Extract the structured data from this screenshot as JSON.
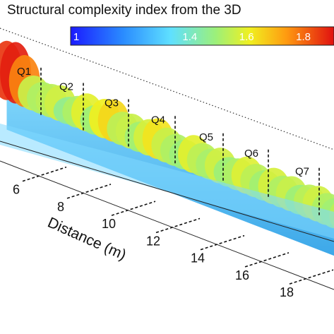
{
  "chart_data": {
    "type": "surface-3d",
    "title": "Structural complexity index from the 3D",
    "colorbar": {
      "ticks": [
        "1",
        "1.4",
        "1.6",
        "1.8"
      ],
      "tick_values": [
        1.0,
        1.4,
        1.6,
        1.8
      ],
      "range": [
        1.0,
        2.0
      ],
      "colormap": "jet",
      "placement": "top-right"
    },
    "axis": {
      "label": "Distance (m)",
      "ticks": [
        "6",
        "8",
        "10",
        "12",
        "14",
        "16",
        "18"
      ],
      "tick_values": [
        6,
        8,
        10,
        12,
        14,
        16,
        18
      ]
    },
    "quadrats": [
      "Q1",
      "Q2",
      "Q3",
      "Q4",
      "Q5",
      "Q6",
      "Q7"
    ],
    "surface_profile": {
      "distance_m": [
        3.0,
        3.4,
        3.8,
        4.2,
        4.6,
        5.0,
        5.4,
        5.8,
        6.2,
        6.6,
        7.0,
        7.4,
        7.8,
        8.2,
        8.6,
        9.0,
        9.4,
        9.8,
        10.2,
        10.6,
        11.0,
        11.4,
        11.8,
        12.2,
        12.6,
        13.0,
        13.4,
        13.8,
        14.2,
        14.6,
        15.0,
        15.4,
        15.8,
        16.2,
        16.6,
        17.0,
        17.4,
        17.8,
        18.2,
        18.6
      ],
      "complexity": [
        1.95,
        1.98,
        1.85,
        1.62,
        1.58,
        1.6,
        1.63,
        1.52,
        1.58,
        1.66,
        1.55,
        1.68,
        1.72,
        1.6,
        1.62,
        1.56,
        1.64,
        1.7,
        1.62,
        1.58,
        1.55,
        1.66,
        1.6,
        1.57,
        1.63,
        1.55,
        1.58,
        1.65,
        1.6,
        1.56,
        1.64,
        1.58,
        1.62,
        1.55,
        1.6,
        1.63,
        1.58,
        1.56,
        1.6,
        1.55
      ]
    }
  }
}
